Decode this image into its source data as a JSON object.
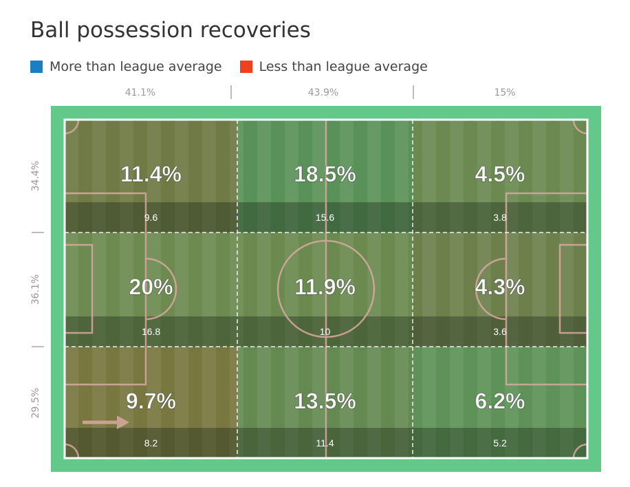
{
  "title": "Ball possession recoveries",
  "legend": {
    "more_label": "More than league average",
    "less_label": "Less than league average",
    "more_color": "#1a7fc1",
    "less_color": "#f0401e"
  },
  "chart_data": {
    "type": "heatmap",
    "title": "Ball possession recoveries",
    "column_percentages": [
      "41.1%",
      "43.9%",
      "15%"
    ],
    "row_percentages": [
      "34.4%",
      "36.1%",
      "29.5%"
    ],
    "cells": [
      [
        {
          "value": "11.4%",
          "league_avg": "9.6",
          "vs_league": "more"
        },
        {
          "value": "18.5%",
          "league_avg": "15.6",
          "vs_league": "more"
        },
        {
          "value": "4.5%",
          "league_avg": "3.8",
          "vs_league": "more"
        }
      ],
      [
        {
          "value": "20%",
          "league_avg": "16.8",
          "vs_league": "more"
        },
        {
          "value": "11.9%",
          "league_avg": "10",
          "vs_league": "more"
        },
        {
          "value": "4.3%",
          "league_avg": "3.6",
          "vs_league": "more"
        }
      ],
      [
        {
          "value": "9.7%",
          "league_avg": "8.2",
          "vs_league": "more"
        },
        {
          "value": "13.5%",
          "league_avg": "11.4",
          "vs_league": "more"
        },
        {
          "value": "6.2%",
          "league_avg": "5.2",
          "vs_league": "more"
        }
      ]
    ],
    "cell_colors": [
      [
        "#6f7a45",
        "#5a9158",
        "#6a8a52"
      ],
      [
        "#6d8a50",
        "#6a8a50",
        "#6d804c"
      ],
      [
        "#78773f",
        "#648a52",
        "#5e9258"
      ]
    ],
    "attack_direction": "left-to-right",
    "grid": true
  }
}
